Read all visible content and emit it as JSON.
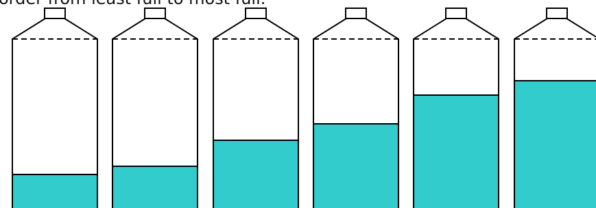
{
  "instruction": "order from least full to most full."
}
